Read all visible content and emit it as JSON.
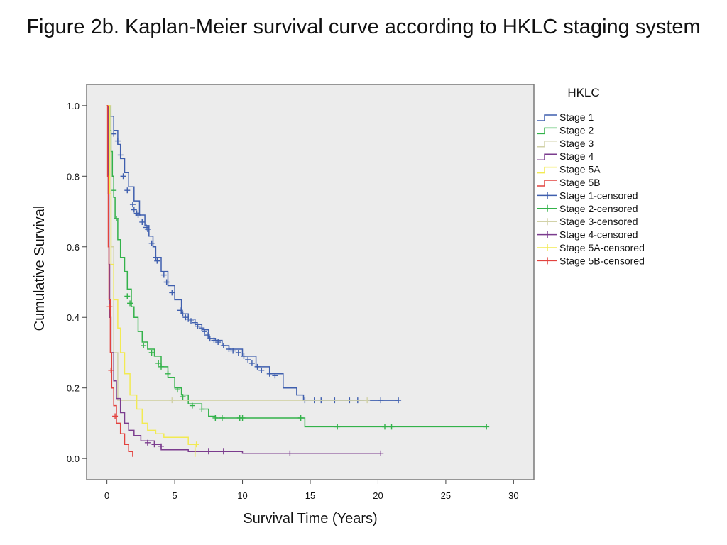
{
  "title": "Figure 2b. Kaplan-Meier survival curve according to HKLC staging system",
  "chart_data": {
    "type": "line",
    "xlabel": "Survival Time (Years)",
    "ylabel": "Cumulative Survival",
    "xlim": [
      -1.5,
      31.5
    ],
    "ylim": [
      -0.06,
      1.06
    ],
    "xticks": [
      0,
      5,
      10,
      15,
      20,
      25,
      30
    ],
    "yticks": [
      0.0,
      0.2,
      0.4,
      0.6,
      0.8,
      1.0
    ],
    "xtick_labels": [
      "0",
      "5",
      "10",
      "15",
      "20",
      "25",
      "30"
    ],
    "ytick_labels": [
      "0.0",
      "0.2",
      "0.4",
      "0.6",
      "0.8",
      "1.0"
    ],
    "plot_background": "#ececec",
    "grid": false,
    "legend_title": "HKLC",
    "legend_position": "right",
    "legend_entries": [
      {
        "label": "Stage 1",
        "color": "#3f5fae",
        "marker": "line"
      },
      {
        "label": "Stage 2",
        "color": "#33b24a",
        "marker": "line"
      },
      {
        "label": "Stage 3",
        "color": "#d2d2a8",
        "marker": "line"
      },
      {
        "label": "Stage 4",
        "color": "#7b3c8e",
        "marker": "line"
      },
      {
        "label": "Stage 5A",
        "color": "#f2ea52",
        "marker": "line"
      },
      {
        "label": "Stage 5B",
        "color": "#e2423e",
        "marker": "line"
      },
      {
        "label": "Stage 1-censored",
        "color": "#3f5fae",
        "marker": "plus"
      },
      {
        "label": "Stage 2-censored",
        "color": "#33b24a",
        "marker": "plus"
      },
      {
        "label": "Stage 3-censored",
        "color": "#d2d2a8",
        "marker": "plus"
      },
      {
        "label": "Stage 4-censored",
        "color": "#7b3c8e",
        "marker": "plus"
      },
      {
        "label": "Stage 5A-censored",
        "color": "#f2ea52",
        "marker": "plus"
      },
      {
        "label": "Stage 5B-censored",
        "color": "#e2423e",
        "marker": "plus"
      }
    ],
    "series": [
      {
        "name": "Stage 1",
        "color": "#3f5fae",
        "points": [
          [
            0,
            1.0
          ],
          [
            0.2,
            0.97
          ],
          [
            0.5,
            0.93
          ],
          [
            0.8,
            0.89
          ],
          [
            1.0,
            0.85
          ],
          [
            1.3,
            0.81
          ],
          [
            1.6,
            0.77
          ],
          [
            2.0,
            0.73
          ],
          [
            2.4,
            0.69
          ],
          [
            2.8,
            0.66
          ],
          [
            3.1,
            0.63
          ],
          [
            3.4,
            0.6
          ],
          [
            3.6,
            0.57
          ],
          [
            4.0,
            0.53
          ],
          [
            4.5,
            0.49
          ],
          [
            5.0,
            0.45
          ],
          [
            5.5,
            0.41
          ],
          [
            6.0,
            0.395
          ],
          [
            6.5,
            0.38
          ],
          [
            7.0,
            0.365
          ],
          [
            7.5,
            0.34
          ],
          [
            8.0,
            0.335
          ],
          [
            8.5,
            0.32
          ],
          [
            9.0,
            0.31
          ],
          [
            10.0,
            0.29
          ],
          [
            11.0,
            0.26
          ],
          [
            12.0,
            0.24
          ],
          [
            13.0,
            0.2
          ],
          [
            14.0,
            0.18
          ],
          [
            14.5,
            0.165
          ],
          [
            21.5,
            0.165
          ]
        ],
        "censored": [
          [
            0.5,
            0.92
          ],
          [
            0.8,
            0.9
          ],
          [
            1.0,
            0.86
          ],
          [
            1.2,
            0.8
          ],
          [
            1.5,
            0.76
          ],
          [
            1.9,
            0.72
          ],
          [
            2.0,
            0.705
          ],
          [
            2.2,
            0.695
          ],
          [
            2.3,
            0.69
          ],
          [
            2.6,
            0.67
          ],
          [
            2.9,
            0.655
          ],
          [
            3.0,
            0.65
          ],
          [
            3.3,
            0.61
          ],
          [
            3.6,
            0.57
          ],
          [
            3.7,
            0.56
          ],
          [
            4.2,
            0.52
          ],
          [
            4.4,
            0.5
          ],
          [
            4.8,
            0.47
          ],
          [
            5.4,
            0.42
          ],
          [
            5.6,
            0.41
          ],
          [
            5.8,
            0.4
          ],
          [
            6.0,
            0.395
          ],
          [
            6.2,
            0.39
          ],
          [
            6.5,
            0.385
          ],
          [
            6.7,
            0.375
          ],
          [
            7.0,
            0.37
          ],
          [
            7.2,
            0.36
          ],
          [
            7.4,
            0.35
          ],
          [
            7.6,
            0.34
          ],
          [
            7.9,
            0.335
          ],
          [
            8.2,
            0.33
          ],
          [
            8.6,
            0.32
          ],
          [
            9.0,
            0.31
          ],
          [
            9.3,
            0.305
          ],
          [
            9.7,
            0.3
          ],
          [
            10.1,
            0.29
          ],
          [
            10.4,
            0.28
          ],
          [
            10.7,
            0.27
          ],
          [
            11.1,
            0.26
          ],
          [
            11.4,
            0.25
          ],
          [
            12.0,
            0.24
          ],
          [
            12.4,
            0.235
          ],
          [
            14.6,
            0.165
          ],
          [
            15.3,
            0.165
          ],
          [
            15.8,
            0.165
          ],
          [
            16.8,
            0.165
          ],
          [
            17.9,
            0.165
          ],
          [
            18.5,
            0.165
          ],
          [
            20.2,
            0.165
          ],
          [
            21.5,
            0.165
          ]
        ]
      },
      {
        "name": "Stage 2",
        "color": "#33b24a",
        "points": [
          [
            0,
            1.0
          ],
          [
            0.2,
            0.93
          ],
          [
            0.3,
            0.87
          ],
          [
            0.4,
            0.8
          ],
          [
            0.5,
            0.74
          ],
          [
            0.6,
            0.68
          ],
          [
            0.8,
            0.62
          ],
          [
            1.0,
            0.57
          ],
          [
            1.3,
            0.53
          ],
          [
            1.5,
            0.48
          ],
          [
            1.8,
            0.43
          ],
          [
            2.0,
            0.4
          ],
          [
            2.3,
            0.36
          ],
          [
            2.6,
            0.33
          ],
          [
            3.0,
            0.31
          ],
          [
            3.5,
            0.29
          ],
          [
            4.0,
            0.26
          ],
          [
            4.5,
            0.23
          ],
          [
            5.0,
            0.2
          ],
          [
            5.5,
            0.18
          ],
          [
            6.0,
            0.155
          ],
          [
            7.0,
            0.14
          ],
          [
            7.5,
            0.12
          ],
          [
            8.0,
            0.115
          ],
          [
            14.5,
            0.115
          ],
          [
            14.6,
            0.09
          ],
          [
            28.0,
            0.09
          ]
        ],
        "censored": [
          [
            0.5,
            0.76
          ],
          [
            0.7,
            0.68
          ],
          [
            1.5,
            0.46
          ],
          [
            1.7,
            0.44
          ],
          [
            2.7,
            0.32
          ],
          [
            3.3,
            0.3
          ],
          [
            3.8,
            0.27
          ],
          [
            4.0,
            0.26
          ],
          [
            4.5,
            0.24
          ],
          [
            5.2,
            0.195
          ],
          [
            5.6,
            0.175
          ],
          [
            6.3,
            0.15
          ],
          [
            7.0,
            0.14
          ],
          [
            8.0,
            0.115
          ],
          [
            8.5,
            0.115
          ],
          [
            9.8,
            0.115
          ],
          [
            10.0,
            0.115
          ],
          [
            14.3,
            0.115
          ],
          [
            17.0,
            0.09
          ],
          [
            20.5,
            0.09
          ],
          [
            21.0,
            0.09
          ],
          [
            28.0,
            0.09
          ]
        ]
      },
      {
        "name": "Stage 3",
        "color": "#d2d2a8",
        "points": [
          [
            0,
            1.0
          ],
          [
            0.3,
            0.6
          ],
          [
            0.5,
            0.3
          ],
          [
            0.8,
            0.165
          ],
          [
            19.2,
            0.165
          ]
        ],
        "censored": [
          [
            4.8,
            0.165
          ],
          [
            19.2,
            0.165
          ]
        ]
      },
      {
        "name": "Stage 4",
        "color": "#7b3c8e",
        "points": [
          [
            0,
            1.0
          ],
          [
            0.1,
            0.75
          ],
          [
            0.15,
            0.55
          ],
          [
            0.2,
            0.4
          ],
          [
            0.3,
            0.3
          ],
          [
            0.5,
            0.22
          ],
          [
            0.7,
            0.17
          ],
          [
            1.0,
            0.13
          ],
          [
            1.3,
            0.1
          ],
          [
            1.6,
            0.08
          ],
          [
            2.0,
            0.065
          ],
          [
            2.5,
            0.05
          ],
          [
            3.5,
            0.04
          ],
          [
            4.0,
            0.025
          ],
          [
            6.0,
            0.02
          ],
          [
            10.0,
            0.015
          ],
          [
            20.2,
            0.015
          ]
        ],
        "censored": [
          [
            3.0,
            0.045
          ],
          [
            3.5,
            0.04
          ],
          [
            4.0,
            0.035
          ],
          [
            6.5,
            0.02
          ],
          [
            7.5,
            0.02
          ],
          [
            8.6,
            0.02
          ],
          [
            13.5,
            0.015
          ],
          [
            20.2,
            0.015
          ]
        ]
      },
      {
        "name": "Stage 5A",
        "color": "#f2ea52",
        "points": [
          [
            0,
            1.0
          ],
          [
            0.2,
            0.75
          ],
          [
            0.3,
            0.55
          ],
          [
            0.5,
            0.45
          ],
          [
            0.8,
            0.37
          ],
          [
            1.0,
            0.3
          ],
          [
            1.3,
            0.24
          ],
          [
            1.7,
            0.18
          ],
          [
            2.2,
            0.14
          ],
          [
            2.6,
            0.1
          ],
          [
            3.0,
            0.08
          ],
          [
            3.6,
            0.07
          ],
          [
            4.2,
            0.06
          ],
          [
            6.0,
            0.04
          ],
          [
            6.5,
            0.005
          ]
        ],
        "censored": [
          [
            6.6,
            0.04
          ]
        ]
      },
      {
        "name": "Stage 5B",
        "color": "#e2423e",
        "points": [
          [
            0,
            1.0
          ],
          [
            0.05,
            0.8
          ],
          [
            0.1,
            0.6
          ],
          [
            0.15,
            0.45
          ],
          [
            0.25,
            0.3
          ],
          [
            0.35,
            0.2
          ],
          [
            0.5,
            0.15
          ],
          [
            0.7,
            0.1
          ],
          [
            1.0,
            0.07
          ],
          [
            1.3,
            0.04
          ],
          [
            1.6,
            0.02
          ],
          [
            1.9,
            0.005
          ]
        ],
        "censored": [
          [
            0.2,
            0.43
          ],
          [
            0.3,
            0.25
          ],
          [
            0.6,
            0.12
          ]
        ]
      }
    ]
  }
}
